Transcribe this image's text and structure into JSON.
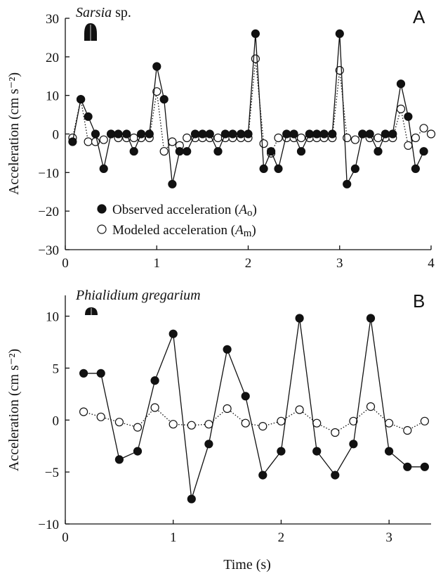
{
  "chart_data": [
    {
      "id": "A",
      "type": "line",
      "panel_label": "A",
      "species": "Sarsia",
      "species_suffix": " sp.",
      "ylabel": "Acceleration (cm s⁻²)",
      "xlabel": "",
      "xlim": [
        0,
        4
      ],
      "ylim": [
        -30,
        30
      ],
      "xticks": [
        0,
        1,
        2,
        3,
        4
      ],
      "yticks": [
        -30,
        -20,
        -10,
        0,
        10,
        20,
        30
      ],
      "legend": {
        "placement": "lower-left",
        "entries": [
          {
            "prefix": "Observed acceleration (",
            "symbol": "A",
            "sub": "o",
            "suffix": ")"
          },
          {
            "prefix": "Modeled acceleration (",
            "symbol": "A",
            "sub": "m",
            "suffix": ")"
          }
        ]
      },
      "series": [
        {
          "name": "Observed acceleration (Ao)",
          "marker": "filled",
          "line": "solid",
          "x": [
            0.08,
            0.17,
            0.25,
            0.33,
            0.42,
            0.5,
            0.58,
            0.67,
            0.75,
            0.83,
            0.92,
            1.0,
            1.08,
            1.17,
            1.25,
            1.33,
            1.42,
            1.5,
            1.58,
            1.67,
            1.75,
            1.83,
            1.92,
            2.0,
            2.08,
            2.17,
            2.25,
            2.33,
            2.42,
            2.5,
            2.58,
            2.67,
            2.75,
            2.83,
            2.92,
            3.0,
            3.08,
            3.17,
            3.25,
            3.33,
            3.42,
            3.5,
            3.58,
            3.67,
            3.75,
            3.83,
            3.92
          ],
          "values": [
            -2,
            9,
            4.5,
            0,
            -9,
            0,
            0,
            0,
            -4.5,
            0,
            0,
            17.5,
            9,
            -13,
            -4.5,
            -4.5,
            0,
            0,
            0,
            -4.5,
            0,
            0,
            0,
            0,
            26,
            -9,
            -4.5,
            -9,
            0,
            0,
            -4.5,
            0,
            0,
            0,
            0,
            26,
            -13,
            -9,
            0,
            0,
            -4.5,
            0,
            0,
            13,
            4.5,
            -9,
            -4.5
          ]
        },
        {
          "name": "Modeled acceleration (Am)",
          "marker": "open",
          "line": "dotted",
          "x": [
            0.08,
            0.17,
            0.25,
            0.33,
            0.42,
            0.5,
            0.58,
            0.67,
            0.75,
            0.83,
            0.92,
            1.0,
            1.08,
            1.17,
            1.25,
            1.33,
            1.42,
            1.5,
            1.58,
            1.67,
            1.75,
            1.83,
            1.92,
            2.0,
            2.08,
            2.17,
            2.25,
            2.33,
            2.42,
            2.5,
            2.58,
            2.67,
            2.75,
            2.83,
            2.92,
            3.0,
            3.08,
            3.17,
            3.25,
            3.33,
            3.42,
            3.5,
            3.58,
            3.67,
            3.75,
            3.83,
            3.92,
            4.0
          ],
          "values": [
            -1,
            9,
            -2,
            -2,
            -1.5,
            0,
            -1,
            -1,
            -1,
            -1,
            -1,
            11,
            -4.5,
            -2,
            -3,
            -1,
            -1,
            -1,
            -1,
            -1,
            -1,
            -1,
            -1,
            -1,
            19.5,
            -2.5,
            -5,
            -1,
            -1,
            -1,
            -1,
            -1,
            -1,
            -1,
            -1,
            16.5,
            -1,
            -1.5,
            0,
            -1,
            -1,
            -1,
            -1,
            6.5,
            -3,
            -1,
            1.5,
            0
          ]
        }
      ]
    },
    {
      "id": "B",
      "type": "line",
      "panel_label": "B",
      "species": "Phialidium gregarium",
      "species_suffix": "",
      "ylabel": "Acceleration (cm s⁻²)",
      "xlabel": "Time (s)",
      "xlim": [
        0,
        3.5
      ],
      "ylim": [
        -10,
        12
      ],
      "xticks": [
        0,
        1,
        2,
        3
      ],
      "yticks": [
        -10,
        -5,
        0,
        5,
        10
      ],
      "series": [
        {
          "name": "Observed acceleration (Ao)",
          "marker": "filled",
          "line": "solid",
          "x": [
            0.17,
            0.33,
            0.5,
            0.67,
            0.83,
            1.0,
            1.17,
            1.33,
            1.5,
            1.67,
            1.83,
            2.0,
            2.17,
            2.33,
            2.5,
            2.67,
            2.83,
            3.0,
            3.17,
            3.33
          ],
          "values": [
            4.5,
            4.5,
            -3.8,
            -3,
            3.8,
            8.3,
            -7.6,
            -2.3,
            6.8,
            2.3,
            -5.3,
            -3,
            9.8,
            -3,
            -5.3,
            -2.3,
            9.8,
            -3,
            -4.5,
            -4.5
          ]
        },
        {
          "name": "Modeled acceleration (Am)",
          "marker": "open",
          "line": "dotted",
          "x": [
            0.17,
            0.33,
            0.5,
            0.67,
            0.83,
            1.0,
            1.17,
            1.33,
            1.5,
            1.67,
            1.83,
            2.0,
            2.17,
            2.33,
            2.5,
            2.67,
            2.83,
            3.0,
            3.17,
            3.33
          ],
          "values": [
            0.8,
            0.3,
            -0.2,
            -0.7,
            1.2,
            -0.4,
            -0.5,
            -0.4,
            1.1,
            -0.3,
            -0.6,
            -0.1,
            1.0,
            -0.3,
            -1.2,
            -0.1,
            1.3,
            -0.3,
            -1.0,
            -0.1
          ]
        }
      ]
    }
  ]
}
